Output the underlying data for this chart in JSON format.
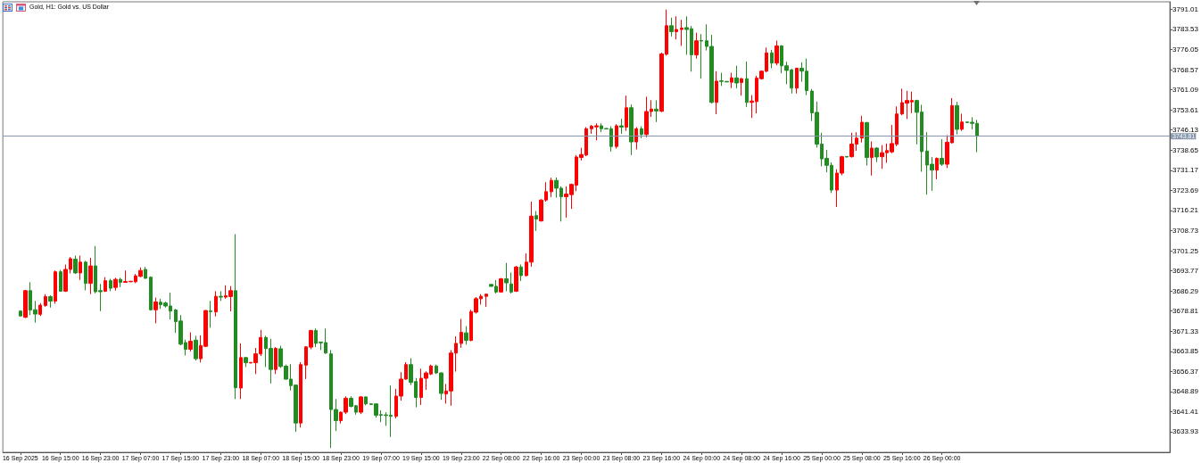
{
  "chart_data": {
    "type": "candlestick",
    "title": "Gold, H1: Gold vs. US Dollar",
    "categories": [
      null,
      null,
      null,
      "16 Sep 2025",
      null,
      null,
      null,
      null,
      null,
      null,
      null,
      "16 Sep 15:00",
      null,
      null,
      null,
      null,
      null,
      null,
      null,
      "16 Sep 23:00",
      null,
      null,
      null,
      null,
      null,
      null,
      null,
      "17 Sep 07:00",
      null,
      null,
      null,
      null,
      null,
      null,
      null,
      "17 Sep 15:00",
      null,
      null,
      null,
      null,
      null,
      null,
      null,
      "17 Sep 23:00",
      null,
      null,
      null,
      null,
      null,
      null,
      null,
      "18 Sep 07:00",
      null,
      null,
      null,
      null,
      null,
      null,
      null,
      "18 Sep 15:00",
      null,
      null,
      null,
      null,
      null,
      null,
      null,
      "18 Sep 23:00",
      null,
      null,
      null,
      null,
      null,
      null,
      null,
      "19 Sep 07:00",
      null,
      null,
      null,
      null,
      null,
      null,
      null,
      "19 Sep 15:00",
      null,
      null,
      null,
      null,
      null,
      null,
      null,
      "19 Sep 23:00",
      null,
      null,
      null,
      null,
      null,
      null,
      null,
      "22 Sep 08:00",
      null,
      null,
      null,
      null,
      null,
      null,
      null,
      "22 Sep 16:00",
      null,
      null,
      null,
      null,
      null,
      null,
      null,
      "23 Sep 00:00",
      null,
      null,
      null,
      null,
      null,
      null,
      null,
      "23 Sep 08:00",
      null,
      null,
      null,
      null,
      null,
      null,
      null,
      "23 Sep 16:00",
      null,
      null,
      null,
      null,
      null,
      null,
      null,
      "24 Sep 00:00",
      null,
      null,
      null,
      null,
      null,
      null,
      null,
      "24 Sep 08:00",
      null,
      null,
      null,
      null,
      null,
      null,
      null,
      "24 Sep 16:00",
      null,
      null,
      null,
      null,
      null,
      null,
      null,
      "25 Sep 00:00",
      null,
      null,
      null,
      null,
      null,
      null,
      null,
      "25 Sep 08:00",
      null,
      null,
      null,
      null,
      null,
      null,
      null,
      "25 Sep 16:00",
      null,
      null,
      null,
      null,
      null,
      null,
      null,
      "26 Sep 00:00",
      null,
      null,
      null,
      null,
      null,
      null,
      null,
      null,
      null,
      null,
      null,
      null,
      null,
      null,
      null,
      null,
      null,
      null,
      null,
      null,
      null,
      null,
      null,
      null,
      null,
      null,
      null,
      null,
      null,
      null,
      null,
      null,
      null,
      null,
      null,
      null,
      null,
      null,
      null,
      null,
      null,
      null,
      null,
      null,
      null
    ],
    "ohlc": [
      null,
      null,
      null,
      [
        3678.8,
        3679.0,
        3676.8,
        3677.0
      ],
      [
        3676.5,
        3686.7,
        3676.2,
        3686.4
      ],
      [
        3686.4,
        3689.5,
        3677.3,
        3679.2
      ],
      [
        3679.3,
        3682.6,
        3674.5,
        3677.7
      ],
      [
        3677.6,
        3681.8,
        3677.0,
        3681.0
      ],
      [
        3680.9,
        3685.1,
        3680.4,
        3684.2
      ],
      [
        3684.2,
        3684.7,
        3680.1,
        3682.5
      ],
      [
        3682.5,
        3693.9,
        3681.5,
        3693.4
      ],
      [
        3693.4,
        3694.1,
        3686.0,
        3686.2
      ],
      [
        3686.2,
        3696.1,
        3685.9,
        3694.3
      ],
      [
        3694.3,
        3698.9,
        3692.8,
        3698.3
      ],
      [
        3698.1,
        3699.4,
        3692.6,
        3693.0
      ],
      [
        3693.0,
        3699.4,
        3690.4,
        3697.0
      ],
      [
        3697.0,
        3697.5,
        3686.5,
        3689.1
      ],
      [
        3689.1,
        3698.6,
        3685.1,
        3695.6
      ],
      [
        3695.6,
        3703.0,
        3685.4,
        3686.0
      ],
      [
        3686.4,
        3688.9,
        3678.8,
        3686.0
      ],
      [
        3686.2,
        3691.4,
        3685.9,
        3690.1
      ],
      [
        3690.1,
        3690.8,
        3686.2,
        3687.3
      ],
      [
        3687.6,
        3691.2,
        3686.4,
        3690.6
      ],
      [
        3690.6,
        3691.2,
        3687.7,
        3689.5
      ],
      [
        3689.5,
        3693.9,
        3689.4,
        3689.8
      ],
      [
        3689.7,
        3690.0,
        3689.6,
        3689.9
      ],
      [
        3689.7,
        3692.6,
        3689.2,
        3691.9
      ],
      [
        3691.7,
        3695.0,
        3691.4,
        3693.9
      ],
      [
        3694.3,
        3695.2,
        3690.8,
        3691.0
      ],
      [
        3691.4,
        3691.7,
        3679.0,
        3679.3
      ],
      [
        3679.3,
        3683.8,
        3674.3,
        3682.2
      ],
      [
        3682.1,
        3683.4,
        3679.6,
        3681.2
      ],
      [
        3681.8,
        3682.3,
        3680.1,
        3680.7
      ],
      [
        3680.7,
        3685.6,
        3675.7,
        3678.8
      ],
      [
        3679.2,
        3679.6,
        3670.7,
        3674.9
      ],
      [
        3675.1,
        3677.3,
        3666.1,
        3666.5
      ],
      [
        3667.1,
        3668.2,
        3662.3,
        3664.6
      ],
      [
        3664.6,
        3670.9,
        3663.8,
        3667.6
      ],
      [
        3668.0,
        3669.6,
        3660.4,
        3661.1
      ],
      [
        3661.1,
        3669.8,
        3659.7,
        3666.0
      ],
      [
        3665.7,
        3679.2,
        3665.4,
        3679.0
      ],
      [
        3678.9,
        3682.6,
        3672.6,
        3678.6
      ],
      [
        3678.5,
        3686.2,
        3676.8,
        3684.3
      ],
      [
        3684.3,
        3686.2,
        3682.6,
        3684.0
      ],
      [
        3684.0,
        3688.4,
        3683.4,
        3684.5
      ],
      [
        3684.2,
        3688.1,
        3678.7,
        3686.4
      ],
      [
        3686.4,
        3707.4,
        3646.1,
        3650.3
      ],
      [
        3650.2,
        3666.8,
        3646.1,
        3661.5
      ],
      [
        3661.5,
        3661.8,
        3658.0,
        3659.6
      ],
      [
        3659.5,
        3659.8,
        3659.4,
        3659.7
      ],
      [
        3659.6,
        3665.1,
        3655.4,
        3662.9
      ],
      [
        3662.9,
        3671.8,
        3662.1,
        3669.0
      ],
      [
        3669.0,
        3669.6,
        3658.0,
        3664.9
      ],
      [
        3664.9,
        3668.5,
        3651.9,
        3657.1
      ],
      [
        3657.1,
        3665.4,
        3655.4,
        3664.9
      ],
      [
        3664.8,
        3665.9,
        3657.7,
        3658.2
      ],
      [
        3658.3,
        3658.9,
        3653.3,
        3653.5
      ],
      [
        3653.5,
        3659.1,
        3649.3,
        3651.1
      ],
      [
        3651.3,
        3651.4,
        3633.9,
        3637.2
      ],
      [
        3637.2,
        3659.8,
        3635.5,
        3658.9
      ],
      [
        3658.7,
        3665.7,
        3653.5,
        3665.5
      ],
      [
        3665.4,
        3671.8,
        3664.6,
        3671.6
      ],
      [
        3671.6,
        3672.3,
        3665.4,
        3666.8
      ],
      [
        3667.3,
        3667.4,
        3664.3,
        3667.0
      ],
      [
        3667.1,
        3672.3,
        3662.9,
        3663.2
      ],
      [
        3662.9,
        3664.3,
        3627.9,
        3642.2
      ],
      [
        3642.2,
        3646.1,
        3634.2,
        3638.1
      ],
      [
        3638.1,
        3641.4,
        3637.0,
        3641.2
      ],
      [
        3641.2,
        3647.1,
        3640.5,
        3646.4
      ],
      [
        3646.4,
        3647.1,
        3643.0,
        3643.4
      ],
      [
        3643.6,
        3643.9,
        3640.3,
        3641.2
      ],
      [
        3641.2,
        3647.2,
        3640.5,
        3646.9
      ],
      [
        3646.9,
        3647.1,
        3643.8,
        3644.3
      ],
      [
        3644.3,
        3644.4,
        3643.9,
        3644.1
      ],
      [
        3644.3,
        3644.5,
        3639.2,
        3640.1
      ],
      [
        3640.3,
        3641.9,
        3637.5,
        3640.1
      ],
      [
        3640.2,
        3641.2,
        3636.1,
        3640.0
      ],
      [
        3640.1,
        3651.1,
        3632.0,
        3639.7
      ],
      [
        3639.7,
        3649.9,
        3638.9,
        3647.2
      ],
      [
        3647.2,
        3656.1,
        3645.5,
        3653.5
      ],
      [
        3653.5,
        3659.8,
        3653.3,
        3658.9
      ],
      [
        3658.9,
        3661.3,
        3651.3,
        3652.3
      ],
      [
        3652.6,
        3653.9,
        3643.0,
        3646.7
      ],
      [
        3646.7,
        3657.4,
        3643.9,
        3653.8
      ],
      [
        3653.8,
        3656.4,
        3649.5,
        3655.8
      ],
      [
        3655.4,
        3658.9,
        3655.0,
        3658.4
      ],
      [
        3658.4,
        3658.9,
        3655.4,
        3655.8
      ],
      [
        3655.8,
        3656.0,
        3645.8,
        3648.2
      ],
      [
        3648.0,
        3651.7,
        3644.4,
        3649.1
      ],
      [
        3649.1,
        3664.3,
        3643.6,
        3663.2
      ],
      [
        3663.2,
        3669.4,
        3656.3,
        3666.8
      ],
      [
        3666.8,
        3675.9,
        3665.2,
        3670.9
      ],
      [
        3670.7,
        3673.2,
        3666.3,
        3667.9
      ],
      [
        3667.9,
        3679.3,
        3667.6,
        3678.6
      ],
      [
        3678.4,
        3684.0,
        3677.9,
        3683.4
      ],
      [
        3683.4,
        3685.1,
        3681.2,
        3684.3
      ],
      [
        3684.3,
        3685.3,
        3680.4,
        3685.1
      ],
      [
        3688.7,
        3688.9,
        3687.8,
        3688.0
      ],
      [
        3688.0,
        3690.3,
        3685.3,
        3685.9
      ],
      [
        3685.9,
        3691.1,
        3685.6,
        3690.8
      ],
      [
        3690.8,
        3696.7,
        3686.2,
        3689.3
      ],
      [
        3688.9,
        3693.1,
        3685.3,
        3685.9
      ],
      [
        3686.2,
        3695.6,
        3685.9,
        3695.2
      ],
      [
        3695.2,
        3696.1,
        3690.0,
        3692.0
      ],
      [
        3692.0,
        3700.3,
        3691.7,
        3697.0
      ],
      [
        3697.0,
        3719.5,
        3695.3,
        3714.1
      ],
      [
        3714.3,
        3716.0,
        3708.6,
        3713.0
      ],
      [
        3712.3,
        3720.4,
        3712.1,
        3720.1
      ],
      [
        3720.1,
        3726.7,
        3719.5,
        3723.2
      ],
      [
        3723.2,
        3728.4,
        3721.2,
        3727.4
      ],
      [
        3727.4,
        3728.5,
        3721.0,
        3724.5
      ],
      [
        3724.5,
        3725.2,
        3712.1,
        3721.3
      ],
      [
        3721.3,
        3725.2,
        3713.5,
        3722.3
      ],
      [
        3722.1,
        3726.2,
        3716.8,
        3725.9
      ],
      [
        3725.6,
        3736.8,
        3723.4,
        3736.1
      ],
      [
        3735.9,
        3739.5,
        3734.8,
        3737.0
      ],
      [
        3736.8,
        3747.2,
        3736.4,
        3746.6
      ],
      [
        3746.6,
        3748.0,
        3744.7,
        3747.5
      ],
      [
        3747.3,
        3748.6,
        3742.3,
        3747.7
      ],
      [
        3747.7,
        3748.6,
        3745.3,
        3746.6
      ],
      [
        3746.7,
        3746.8,
        3746.4,
        3746.5
      ],
      [
        3746.6,
        3747.5,
        3738.1,
        3740.0
      ],
      [
        3740.0,
        3748.3,
        3739.2,
        3747.7
      ],
      [
        3747.7,
        3750.3,
        3744.7,
        3747.2
      ],
      [
        3747.2,
        3758.9,
        3745.8,
        3754.4
      ],
      [
        3754.4,
        3755.6,
        3736.8,
        3741.7
      ],
      [
        3741.7,
        3747.2,
        3738.9,
        3746.6
      ],
      [
        3746.6,
        3747.5,
        3743.1,
        3744.5
      ],
      [
        3744.5,
        3758.5,
        3743.4,
        3753.0
      ],
      [
        3753.0,
        3757.2,
        3751.0,
        3753.9
      ],
      [
        3753.9,
        3757.2,
        3749.1,
        3753.2
      ],
      [
        3753.1,
        3774.9,
        3752.8,
        3774.4
      ],
      [
        3774.3,
        3790.9,
        3773.8,
        3784.9
      ],
      [
        3784.9,
        3787.9,
        3780.9,
        3782.7
      ],
      [
        3782.7,
        3788.4,
        3779.8,
        3783.5
      ],
      [
        3783.5,
        3787.1,
        3777.4,
        3784.0
      ],
      [
        3784.2,
        3788.4,
        3774.1,
        3783.5
      ],
      [
        3783.8,
        3784.8,
        3767.8,
        3774.1
      ],
      [
        3774.1,
        3782.3,
        3772.7,
        3779.3
      ],
      [
        3779.4,
        3781.8,
        3765.2,
        3779.2
      ],
      [
        3779.3,
        3785.4,
        3775.7,
        3777.2
      ],
      [
        3777.2,
        3781.5,
        3756.0,
        3756.4
      ],
      [
        3756.4,
        3768.0,
        3752.0,
        3764.3
      ],
      [
        3764.4,
        3767.4,
        3762.5,
        3764.2
      ],
      [
        3764.2,
        3764.3,
        3763.9,
        3764.0
      ],
      [
        3763.9,
        3767.4,
        3761.7,
        3765.5
      ],
      [
        3765.5,
        3770.0,
        3761.6,
        3763.6
      ],
      [
        3763.8,
        3765.5,
        3758.9,
        3765.2
      ],
      [
        3765.2,
        3771.6,
        3754.7,
        3756.4
      ],
      [
        3756.4,
        3759.1,
        3750.6,
        3756.9
      ],
      [
        3756.7,
        3766.3,
        3752.3,
        3765.4
      ],
      [
        3765.2,
        3768.2,
        3764.9,
        3768.0
      ],
      [
        3768.0,
        3776.8,
        3767.6,
        3774.8
      ],
      [
        3774.8,
        3775.9,
        3769.1,
        3771.0
      ],
      [
        3771.0,
        3779.4,
        3770.2,
        3777.4
      ],
      [
        3777.4,
        3777.7,
        3767.2,
        3770.0
      ],
      [
        3770.0,
        3771.5,
        3763.2,
        3768.3
      ],
      [
        3768.5,
        3768.9,
        3759.7,
        3761.7
      ],
      [
        3761.7,
        3769.3,
        3759.7,
        3769.1
      ],
      [
        3769.1,
        3771.3,
        3764.1,
        3768.0
      ],
      [
        3768.0,
        3772.7,
        3759.1,
        3760.8
      ],
      [
        3760.6,
        3761.4,
        3749.5,
        3752.5
      ],
      [
        3752.7,
        3756.7,
        3739.6,
        3740.9
      ],
      [
        3740.9,
        3745.1,
        3732.6,
        3735.4
      ],
      [
        3735.6,
        3738.7,
        3730.4,
        3733.0
      ],
      [
        3733.0,
        3734.1,
        3722.7,
        3723.8
      ],
      [
        3723.8,
        3731.5,
        3717.5,
        3730.1
      ],
      [
        3730.1,
        3736.5,
        3729.3,
        3736.2
      ],
      [
        3736.3,
        3736.4,
        3735.9,
        3736.1
      ],
      [
        3736.2,
        3745.1,
        3735.9,
        3740.9
      ],
      [
        3740.9,
        3745.3,
        3738.4,
        3743.1
      ],
      [
        3743.1,
        3751.4,
        3741.5,
        3749.0
      ],
      [
        3748.9,
        3749.1,
        3732.9,
        3735.9
      ],
      [
        3735.9,
        3741.9,
        3729.2,
        3739.4
      ],
      [
        3739.4,
        3739.7,
        3734.2,
        3736.1
      ],
      [
        3736.2,
        3740.5,
        3731.7,
        3737.7
      ],
      [
        3737.7,
        3741.1,
        3733.9,
        3738.5
      ],
      [
        3738.0,
        3748.0,
        3737.5,
        3741.1
      ],
      [
        3740.8,
        3754.9,
        3740.1,
        3752.1
      ],
      [
        3752.1,
        3761.5,
        3751.6,
        3756.3
      ],
      [
        3756.1,
        3760.7,
        3750.2,
        3757.1
      ],
      [
        3756.6,
        3760.4,
        3752.4,
        3757.1
      ],
      [
        3757.1,
        3757.4,
        3740.8,
        3752.7
      ],
      [
        3752.8,
        3755.5,
        3730.6,
        3738.1
      ],
      [
        3738.3,
        3745.3,
        3722.1,
        3733.1
      ],
      [
        3733.4,
        3736.1,
        3723.5,
        3731.2
      ],
      [
        3731.2,
        3735.9,
        3727.8,
        3735.6
      ],
      [
        3735.6,
        3742.7,
        3732.8,
        3733.4
      ],
      [
        3733.4,
        3744.2,
        3732.0,
        3741.6
      ],
      [
        3741.4,
        3758.0,
        3741.1,
        3755.2
      ],
      [
        3755.2,
        3756.6,
        3744.5,
        3746.4
      ],
      [
        3746.4,
        3752.2,
        3745.8,
        3749.1
      ],
      [
        3749.1,
        3749.2,
        3748.8,
        3748.9
      ],
      [
        3749.0,
        3750.9,
        3746.4,
        3748.6
      ],
      [
        3748.6,
        3749.9,
        3737.9,
        3743.81
      ],
      null,
      null,
      null,
      null,
      null,
      null,
      null,
      null,
      null,
      null,
      null,
      null,
      null,
      null,
      null,
      null,
      null,
      null,
      null,
      null,
      null,
      null,
      null,
      null,
      null,
      null,
      null,
      null,
      null,
      null,
      null,
      null,
      null,
      null,
      null,
      null,
      null,
      null
    ],
    "colors": [
      null,
      null,
      null,
      "#228b22",
      "#ff0000",
      "#228b22",
      "#228b22",
      "#ff0000",
      "#ff0000",
      "#228b22",
      "#ff0000",
      "#228b22",
      "#ff0000",
      "#ff0000",
      "#228b22",
      "#ff0000",
      "#228b22",
      "#ff0000",
      "#228b22",
      "#228b22",
      "#ff0000",
      "#228b22",
      "#ff0000",
      "#228b22",
      "#ff0000",
      "#ff0000",
      "#ff0000",
      "#ff0000",
      "#228b22",
      "#228b22",
      "#ff0000",
      "#228b22",
      "#228b22",
      "#228b22",
      "#228b22",
      "#228b22",
      "#228b22",
      "#ff0000",
      "#228b22",
      "#ff0000",
      "#ff0000",
      "#228b22",
      "#ff0000",
      "#228b22",
      "#ff0000",
      "#ff0000",
      "#228b22",
      "#ff0000",
      "#228b22",
      "#ff0000",
      "#ff0000",
      "#ff0000",
      "#228b22",
      "#228b22",
      "#ff0000",
      "#228b22",
      "#228b22",
      "#228b22",
      "#228b22",
      "#ff0000",
      "#ff0000",
      "#ff0000",
      "#228b22",
      "#228b22",
      "#228b22",
      "#228b22",
      "#228b22",
      "#ff0000",
      "#ff0000",
      "#228b22",
      "#228b22",
      "#ff0000",
      "#228b22",
      "#228b22",
      "#228b22",
      "#228b22",
      "#228b22",
      "#228b22",
      "#ff0000",
      "#ff0000",
      "#ff0000",
      "#228b22",
      "#228b22",
      "#ff0000",
      "#ff0000",
      "#ff0000",
      "#228b22",
      "#228b22",
      "#ff0000",
      "#ff0000",
      "#ff0000",
      "#ff0000",
      "#228b22",
      "#ff0000",
      "#ff0000",
      "#ff0000",
      "#ff0000",
      "#228b22",
      "#228b22",
      "#ff0000",
      "#228b22",
      "#228b22",
      "#ff0000",
      "#228b22",
      "#ff0000",
      "#ff0000",
      "#228b22",
      "#ff0000",
      "#ff0000",
      "#ff0000",
      "#228b22",
      "#228b22",
      "#ff0000",
      "#ff0000",
      "#ff0000",
      "#ff0000",
      "#ff0000",
      "#ff0000",
      "#ff0000",
      "#228b22",
      "#228b22",
      "#228b22",
      "#ff0000",
      "#228b22",
      "#ff0000",
      "#228b22",
      "#ff0000",
      "#228b22",
      "#ff0000",
      "#ff0000",
      "#228b22",
      "#ff0000",
      "#ff0000",
      "#228b22",
      "#ff0000",
      "#ff0000",
      "#228b22",
      "#228b22",
      "#ff0000",
      "#228b22",
      "#228b22",
      "#228b22",
      "#ff0000",
      "#228b22",
      "#228b22",
      "#ff0000",
      "#228b22",
      "#ff0000",
      "#228b22",
      "#ff0000",
      "#ff0000",
      "#ff0000",
      "#ff0000",
      "#228b22",
      "#ff0000",
      "#228b22",
      "#228b22",
      "#228b22",
      "#ff0000",
      "#228b22",
      "#228b22",
      "#228b22",
      "#228b22",
      "#228b22",
      "#228b22",
      "#228b22",
      "#ff0000",
      "#ff0000",
      "#228b22",
      "#ff0000",
      "#ff0000",
      "#ff0000",
      "#228b22",
      "#ff0000",
      "#228b22",
      "#ff0000",
      "#ff0000",
      "#ff0000",
      "#ff0000",
      "#ff0000",
      "#ff0000",
      "#ff0000",
      "#228b22",
      "#228b22",
      "#228b22",
      "#228b22",
      "#ff0000",
      "#228b22",
      "#ff0000",
      "#ff0000",
      "#228b22",
      "#ff0000",
      "#228b22",
      "#228b22",
      "#228b22",
      null,
      null,
      null,
      null,
      null,
      null,
      null,
      null,
      null,
      null,
      null,
      null,
      null,
      null,
      null,
      null,
      null,
      null,
      null,
      null,
      null,
      null,
      null,
      null,
      null,
      null,
      null,
      null,
      null,
      null,
      null,
      null,
      null,
      null,
      null,
      null,
      null,
      null
    ],
    "ylim": [
      3626.3,
      3793.8
    ],
    "yticks": [
      3633.93,
      3641.41,
      3648.89,
      3656.37,
      3663.85,
      3671.33,
      3678.81,
      3686.29,
      3693.77,
      3701.25,
      3708.73,
      3716.21,
      3723.69,
      3731.17,
      3738.65,
      3746.13,
      3753.61,
      3761.09,
      3768.57,
      3776.05,
      3783.53,
      3791.01
    ],
    "ref_lines": [
      {
        "axis": "y",
        "value": 3743.81,
        "label": "3743.81",
        "color": "#8796ab"
      }
    ]
  }
}
